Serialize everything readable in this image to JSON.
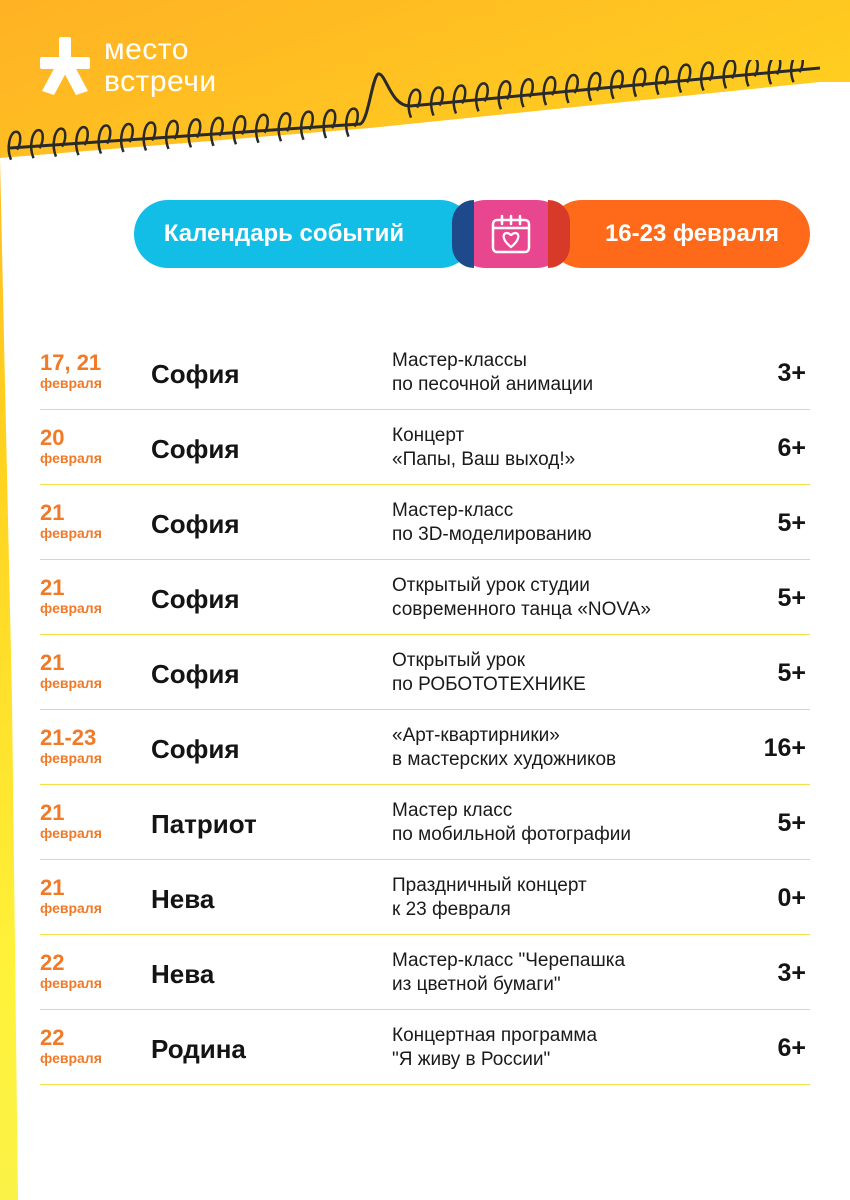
{
  "brand": {
    "line1": "место",
    "line2": "встречи"
  },
  "header": {
    "calendar_label": "Календарь событий",
    "calendar_icon": "calendar-heart-icon",
    "dates_label": "16-23 февраля"
  },
  "colors": {
    "cyan": "#12bde6",
    "pink": "#e8468f",
    "orange": "#ff6a1a",
    "date_orange": "#f07a28",
    "divider_yellow": "#f6e04a"
  },
  "events": [
    {
      "date": "17, 21",
      "month": "февраля",
      "venue": "София",
      "title_line1": "Мастер-классы",
      "title_line2": "по песочной анимации",
      "age": "3+"
    },
    {
      "date": "20",
      "month": "февраля",
      "venue": "София",
      "title_line1": "Концерт",
      "title_line2": "«Папы, Ваш выход!»",
      "age": "6+"
    },
    {
      "date": "21",
      "month": "февраля",
      "venue": "София",
      "title_line1": "Мастер-класс",
      "title_line2": "по 3D-моделированию",
      "age": "5+"
    },
    {
      "date": "21",
      "month": "февраля",
      "venue": "София",
      "title_line1": "Открытый урок студии",
      "title_line2": "современного танца «NOVA»",
      "age": "5+"
    },
    {
      "date": "21",
      "month": "февраля",
      "venue": "София",
      "title_line1": "Открытый урок",
      "title_line2": "по РОБОТОТЕХНИКЕ",
      "age": "5+"
    },
    {
      "date": "21-23",
      "month": "февраля",
      "venue": "София",
      "title_line1": "«Арт-квартирники»",
      "title_line2": "в мастерских художников",
      "age": "16+"
    },
    {
      "date": "21",
      "month": "февраля",
      "venue": "Патриот",
      "title_line1": "Мастер класс",
      "title_line2": "по мобильной фотографии",
      "age": "5+"
    },
    {
      "date": "21",
      "month": "февраля",
      "venue": "Нева",
      "title_line1": "Праздничный концерт",
      "title_line2": "к 23 февраля",
      "age": "0+"
    },
    {
      "date": "22",
      "month": "февраля",
      "venue": "Нева",
      "title_line1": "Мастер-класс \"Черепашка",
      "title_line2": "из цветной бумаги\"",
      "age": "3+"
    },
    {
      "date": "22",
      "month": "февраля",
      "venue": "Родина",
      "title_line1": "Концертная программа",
      "title_line2": "\"Я живу в России\"",
      "age": "6+"
    }
  ]
}
